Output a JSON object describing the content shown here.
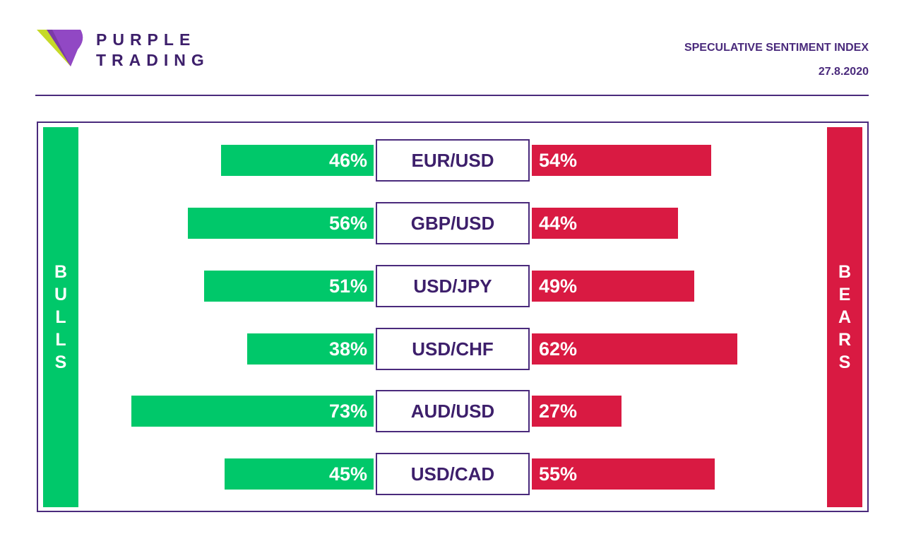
{
  "header": {
    "brand_line1": "PURPLE",
    "brand_line2": "TRADING",
    "title": "SPECULATIVE SENTIMENT INDEX",
    "date": "27.8.2020"
  },
  "colors": {
    "bulls": "#00c86a",
    "bears": "#d91a42",
    "purple": "#4a2a7c"
  },
  "chart_data": {
    "type": "bar",
    "left_label": "BULLS",
    "right_label": "BEARS",
    "categories": [
      "EUR/USD",
      "GBP/USD",
      "USD/JPY",
      "USD/CHF",
      "AUD/USD",
      "USD/CAD"
    ],
    "series": [
      {
        "name": "BULLS",
        "values": [
          46,
          56,
          51,
          38,
          73,
          45
        ],
        "labels": [
          "46%",
          "56%",
          "51%",
          "38%",
          "73%",
          "45%"
        ]
      },
      {
        "name": "BEARS",
        "values": [
          54,
          44,
          49,
          62,
          27,
          55
        ],
        "labels": [
          "54%",
          "44%",
          "49%",
          "62%",
          "27%",
          "55%"
        ]
      }
    ]
  }
}
